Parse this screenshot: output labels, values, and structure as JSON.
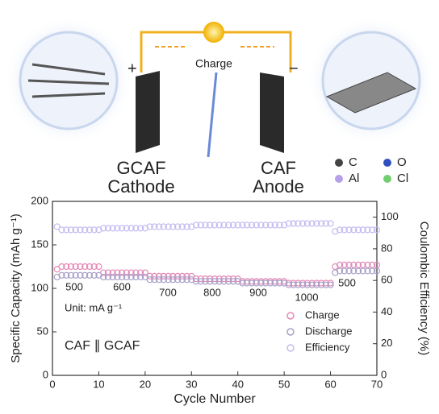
{
  "diagram": {
    "charge": "Charge",
    "plus": "+",
    "minus": "−",
    "cathode_name": "GCAF",
    "cathode": "Cathode",
    "anode_name": "CAF",
    "anode": "Anode",
    "atoms": [
      "C",
      "O",
      "Al",
      "Cl"
    ]
  },
  "chart_data": {
    "type": "scatter",
    "x": [
      1,
      2,
      3,
      4,
      5,
      6,
      7,
      8,
      9,
      10,
      11,
      12,
      13,
      14,
      15,
      16,
      17,
      18,
      19,
      20,
      21,
      22,
      23,
      24,
      25,
      26,
      27,
      28,
      29,
      30,
      31,
      32,
      33,
      34,
      35,
      36,
      37,
      38,
      39,
      40,
      41,
      42,
      43,
      44,
      45,
      46,
      47,
      48,
      49,
      50,
      51,
      52,
      53,
      54,
      55,
      56,
      57,
      58,
      59,
      60,
      61,
      62,
      63,
      64,
      65,
      66,
      67,
      68,
      69,
      70
    ],
    "series": [
      {
        "name": "Charge",
        "color": "#e48ab8",
        "values": [
          122,
          125,
          125,
          125,
          125,
          125,
          125,
          125,
          125,
          125,
          118,
          118,
          118,
          118,
          118,
          118,
          118,
          118,
          118,
          118,
          114,
          114,
          114,
          114,
          114,
          114,
          114,
          114,
          114,
          114,
          111,
          111,
          111,
          111,
          111,
          111,
          111,
          111,
          111,
          111,
          108,
          108,
          108,
          108,
          108,
          108,
          108,
          108,
          108,
          108,
          106,
          106,
          106,
          106,
          106,
          106,
          106,
          106,
          106,
          106,
          125,
          127,
          127,
          127,
          127,
          127,
          127,
          127,
          127,
          127
        ]
      },
      {
        "name": "Discharge",
        "color": "#a8a0c8",
        "values": [
          113,
          115,
          115,
          115,
          115,
          115,
          115,
          115,
          115,
          115,
          113,
          113,
          113,
          113,
          113,
          113,
          113,
          113,
          113,
          113,
          110,
          110,
          110,
          110,
          110,
          110,
          110,
          110,
          110,
          110,
          108,
          108,
          108,
          108,
          108,
          108,
          108,
          108,
          108,
          108,
          106,
          106,
          106,
          106,
          106,
          106,
          106,
          106,
          106,
          106,
          104,
          104,
          104,
          104,
          104,
          104,
          104,
          104,
          104,
          104,
          118,
          120,
          120,
          120,
          120,
          120,
          120,
          120,
          120,
          120
        ]
      },
      {
        "name": "Efficiency",
        "color": "#c4bcf0",
        "axis": "y2",
        "values": [
          94,
          92,
          92,
          92,
          92,
          92,
          92,
          92,
          92,
          92,
          93,
          93,
          93,
          93,
          93,
          93,
          93,
          93,
          93,
          93,
          94,
          94,
          94,
          94,
          94,
          94,
          94,
          94,
          94,
          94,
          95,
          95,
          95,
          95,
          95,
          95,
          95,
          95,
          95,
          95,
          95,
          95,
          95,
          95,
          95,
          95,
          95,
          95,
          95,
          95,
          96,
          96,
          96,
          96,
          96,
          96,
          96,
          96,
          96,
          96,
          91,
          92,
          92,
          92,
          92,
          92,
          92,
          92,
          92,
          92
        ]
      }
    ],
    "xlim": [
      0,
      70
    ],
    "xticks": [
      0,
      10,
      20,
      30,
      40,
      50,
      60,
      70
    ],
    "ylim": [
      0,
      200
    ],
    "yticks": [
      0,
      50,
      100,
      150,
      200
    ],
    "y2lim": [
      0,
      110
    ],
    "y2ticks": [
      0,
      20,
      40,
      60,
      80,
      100
    ],
    "xlabel": "Cycle Number",
    "ylabel": "Specific Capacity (mAh g⁻¹)",
    "y2label": "Coulombic Efficiency (%)",
    "annotations": [
      "500",
      "600",
      "700",
      "800",
      "900",
      "1000",
      "500",
      "Unit: mA g⁻¹",
      "CAF ∥ GCAF"
    ]
  }
}
